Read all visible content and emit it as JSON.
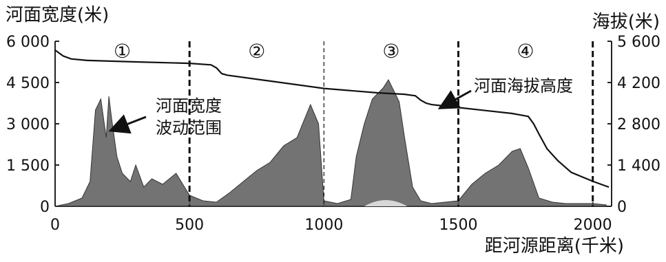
{
  "chart_data": {
    "type": "line",
    "title": "",
    "xlabel": "距河源距离(千米)",
    "ylabel_left": "河面宽度(米)",
    "ylabel_right": "海拔(米)",
    "xlim": [
      0,
      2070
    ],
    "ylim_left": [
      0,
      6000
    ],
    "ylim_right": [
      0,
      5600
    ],
    "x_ticks": [
      0,
      500,
      1000,
      1500,
      2000
    ],
    "x_tick_labels": [
      "0",
      "500",
      "1000",
      "1500",
      "2000"
    ],
    "y_left_ticks": [
      0,
      1500,
      3000,
      4500,
      6000
    ],
    "y_left_tick_labels": [
      "0",
      "1 500",
      "3 000",
      "4 500",
      "6 000"
    ],
    "y_right_ticks": [
      0,
      1400,
      2800,
      4200,
      5600
    ],
    "y_right_tick_labels": [
      "0",
      "1 400",
      "2 800",
      "4 200",
      "5 600"
    ],
    "grid": false,
    "zones": [
      {
        "label": "①",
        "x_start": 0,
        "x_end": 500
      },
      {
        "label": "②",
        "x_start": 500,
        "x_end": 1000
      },
      {
        "label": "③",
        "x_start": 1000,
        "x_end": 1500
      },
      {
        "label": "④",
        "x_start": 1500,
        "x_end": 2000
      }
    ],
    "zone_boundaries": [
      500,
      1000,
      1500,
      2000
    ],
    "series": [
      {
        "name": "河面海拔高度",
        "axis": "right",
        "x": [
          0,
          30,
          60,
          120,
          300,
          500,
          580,
          600,
          620,
          640,
          800,
          1000,
          1200,
          1300,
          1340,
          1360,
          1380,
          1400,
          1500,
          1600,
          1700,
          1760,
          1780,
          1800,
          1830,
          1870,
          1920,
          2000,
          2060
        ],
        "y": [
          5300,
          5100,
          5000,
          4950,
          4900,
          4850,
          4800,
          4700,
          4500,
          4450,
          4250,
          4000,
          3850,
          3800,
          3750,
          3600,
          3500,
          3450,
          3350,
          3250,
          3150,
          3050,
          2800,
          2450,
          1950,
          1550,
          1150,
          850,
          650
        ]
      },
      {
        "name": "河面宽度波动范围",
        "axis": "left",
        "x": [
          0,
          50,
          100,
          130,
          150,
          170,
          190,
          200,
          210,
          230,
          250,
          280,
          300,
          330,
          360,
          400,
          450,
          500,
          550,
          600,
          650,
          700,
          750,
          800,
          850,
          900,
          950,
          980,
          1000,
          1050,
          1100,
          1120,
          1150,
          1180,
          1200,
          1220,
          1240,
          1260,
          1280,
          1300,
          1330,
          1360,
          1400,
          1450,
          1500,
          1550,
          1600,
          1650,
          1700,
          1730,
          1760,
          1800,
          1850,
          1900,
          1950,
          2000,
          2050
        ],
        "y": [
          0,
          100,
          300,
          900,
          3500,
          3900,
          2500,
          4000,
          3200,
          1800,
          1200,
          900,
          1500,
          700,
          1000,
          800,
          1200,
          400,
          200,
          150,
          500,
          900,
          1300,
          1600,
          2200,
          2500,
          3700,
          3000,
          200,
          100,
          250,
          1800,
          3000,
          3900,
          4100,
          4300,
          4600,
          4200,
          3800,
          2500,
          700,
          200,
          100,
          150,
          200,
          800,
          1200,
          1500,
          2000,
          2100,
          1400,
          300,
          150,
          100,
          100,
          100,
          50
        ]
      }
    ],
    "annotations": [
      {
        "text_lines": [
          "河面宽度",
          "波动范围"
        ],
        "points_to": [
          190,
          3300
        ],
        "axis": "left"
      },
      {
        "text_lines": [
          "河面海拔高度"
        ],
        "points_to": [
          1440,
          3380
        ],
        "axis": "right"
      }
    ]
  }
}
